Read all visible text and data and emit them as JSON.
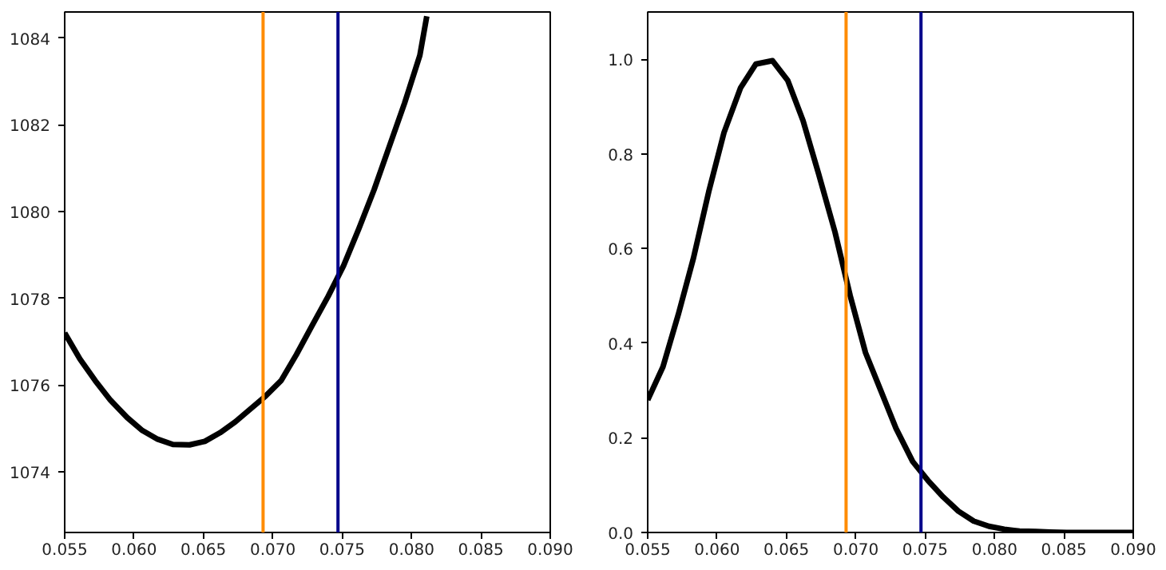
{
  "chart_data": [
    {
      "type": "line",
      "x": [
        0.055,
        0.0561,
        0.0572,
        0.0583,
        0.0595,
        0.0606,
        0.0617,
        0.0628,
        0.064,
        0.0651,
        0.0662,
        0.0673,
        0.0684,
        0.0695,
        0.0706,
        0.0717,
        0.0728,
        0.074,
        0.0751,
        0.0762,
        0.0773,
        0.0784,
        0.0795,
        0.0806,
        0.0811
      ],
      "series": [
        {
          "color": "#000000",
          "values": [
            1077.2,
            1076.6,
            1076.1,
            1075.65,
            1075.25,
            1074.95,
            1074.75,
            1074.63,
            1074.62,
            1074.7,
            1074.9,
            1075.15,
            1075.45,
            1075.75,
            1076.1,
            1076.7,
            1077.35,
            1078.05,
            1078.75,
            1079.6,
            1080.5,
            1081.5,
            1082.5,
            1083.6,
            1084.5
          ]
        }
      ],
      "xlim": [
        0.055,
        0.09
      ],
      "ylim": [
        1072.6,
        1084.6
      ],
      "xticks": [
        {
          "value": 0.055,
          "label": "0.055"
        },
        {
          "value": 0.06,
          "label": "0.060"
        },
        {
          "value": 0.065,
          "label": "0.065"
        },
        {
          "value": 0.07,
          "label": "0.070"
        },
        {
          "value": 0.075,
          "label": "0.075"
        },
        {
          "value": 0.08,
          "label": "0.080"
        },
        {
          "value": 0.085,
          "label": "0.085"
        },
        {
          "value": 0.09,
          "label": "0.090"
        }
      ],
      "yticks": [
        1074,
        1076,
        1078,
        1080,
        1082,
        1084
      ],
      "ref_lines": [
        {
          "axis": "x",
          "value": 0.0693,
          "color": "#ff8c00"
        },
        {
          "axis": "x",
          "value": 0.0747,
          "color": "#00008b"
        }
      ],
      "marker": "none",
      "line_style": "solid"
    },
    {
      "type": "line",
      "x": [
        0.055,
        0.0561,
        0.0572,
        0.0583,
        0.0594,
        0.0605,
        0.0617,
        0.0628,
        0.064,
        0.0651,
        0.0662,
        0.0673,
        0.0685,
        0.0696,
        0.0707,
        0.0718,
        0.0729,
        0.0741,
        0.0752,
        0.0763,
        0.0774,
        0.0785,
        0.0796,
        0.0807,
        0.0818,
        0.083,
        0.084,
        0.0852,
        0.0875,
        0.09
      ],
      "series": [
        {
          "color": "#000000",
          "values": [
            0.28,
            0.35,
            0.46,
            0.58,
            0.72,
            0.845,
            0.94,
            0.99,
            0.997,
            0.955,
            0.87,
            0.76,
            0.635,
            0.5,
            0.38,
            0.3,
            0.22,
            0.15,
            0.11,
            0.075,
            0.045,
            0.024,
            0.013,
            0.007,
            0.003,
            0.002,
            0.001,
            0.0,
            0.0,
            0.0
          ]
        }
      ],
      "xlim": [
        0.055,
        0.09
      ],
      "ylim": [
        0,
        1.1
      ],
      "xticks": [
        {
          "value": 0.055,
          "label": "0.055"
        },
        {
          "value": 0.06,
          "label": "0.060"
        },
        {
          "value": 0.065,
          "label": "0.065"
        },
        {
          "value": 0.07,
          "label": "0.070"
        },
        {
          "value": 0.075,
          "label": "0.075"
        },
        {
          "value": 0.08,
          "label": "0.080"
        },
        {
          "value": 0.085,
          "label": "0.085"
        },
        {
          "value": 0.09,
          "label": "0.090"
        }
      ],
      "yticks": [
        {
          "value": 0,
          "label": "0.0"
        },
        {
          "value": 0.2,
          "label": "0.2"
        },
        {
          "value": 0.4,
          "label": "0.4"
        },
        {
          "value": 0.6,
          "label": "0.6"
        },
        {
          "value": 0.8,
          "label": "0.8"
        },
        {
          "value": 1.0,
          "label": "1.0"
        }
      ],
      "ref_lines": [
        {
          "axis": "x",
          "value": 0.0693,
          "color": "#ff8c00"
        },
        {
          "axis": "x",
          "value": 0.0747,
          "color": "#00008b"
        }
      ],
      "marker": "none",
      "line_style": "solid"
    }
  ]
}
